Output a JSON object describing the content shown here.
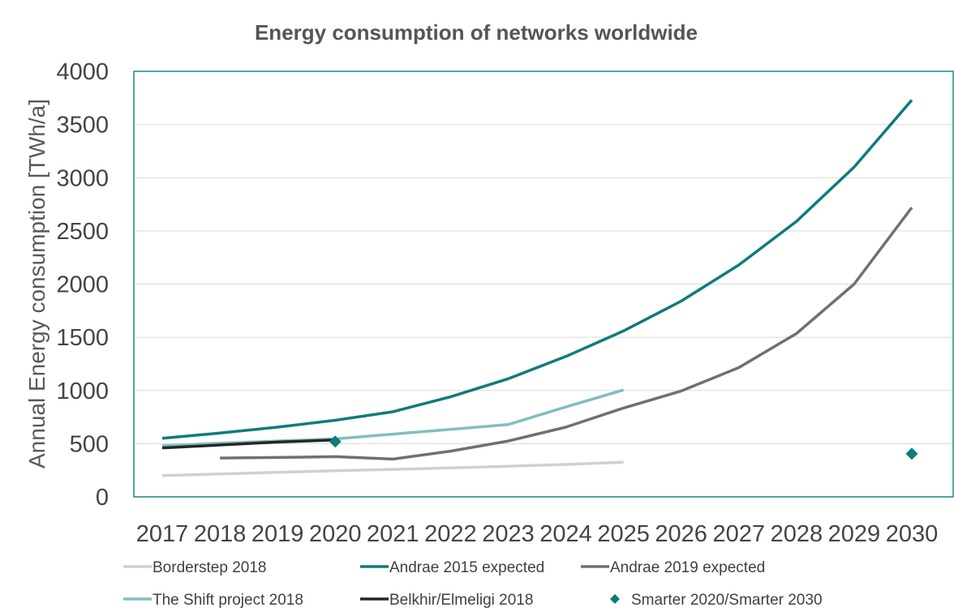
{
  "chart_data": {
    "type": "line",
    "title": "Energy consumption of networks worldwide",
    "xlabel": "",
    "ylabel": "Annual Energy consumption [TWh/a]",
    "x": [
      2017,
      2018,
      2019,
      2020,
      2021,
      2022,
      2023,
      2024,
      2025,
      2026,
      2027,
      2028,
      2029,
      2030
    ],
    "x_tick_labels": [
      "2017",
      "2018",
      "2019",
      "2020",
      "2021",
      "2022",
      "2023",
      "2024",
      "2025",
      "2026",
      "2027",
      "2028",
      "2029",
      "2030"
    ],
    "ylim": [
      0,
      4000
    ],
    "y_ticks": [
      0,
      500,
      1000,
      1500,
      2000,
      2500,
      3000,
      3500,
      4000
    ],
    "grid": "horizontal",
    "legend_position": "bottom",
    "series": [
      {
        "name": "Borderstep 2018",
        "color": "#d0d0d0",
        "marker": "line",
        "points": [
          [
            2017,
            200
          ],
          [
            2018,
            215
          ],
          [
            2019,
            230
          ],
          [
            2020,
            245
          ],
          [
            2021,
            258
          ],
          [
            2022,
            272
          ],
          [
            2023,
            288
          ],
          [
            2024,
            305
          ],
          [
            2025,
            325
          ]
        ]
      },
      {
        "name": "Andrae 2015 expected",
        "color": "#0f7b7b",
        "marker": "line",
        "points": [
          [
            2017,
            550
          ],
          [
            2018,
            600
          ],
          [
            2019,
            655
          ],
          [
            2020,
            720
          ],
          [
            2021,
            800
          ],
          [
            2022,
            940
          ],
          [
            2023,
            1110
          ],
          [
            2024,
            1320
          ],
          [
            2025,
            1560
          ],
          [
            2026,
            1840
          ],
          [
            2027,
            2180
          ],
          [
            2028,
            2590
          ],
          [
            2029,
            3100
          ],
          [
            2030,
            3730
          ]
        ]
      },
      {
        "name": "Andrae 2019 expected",
        "color": "#707070",
        "marker": "line",
        "points": [
          [
            2018,
            365
          ],
          [
            2019,
            370
          ],
          [
            2020,
            378
          ],
          [
            2021,
            355
          ],
          [
            2022,
            430
          ],
          [
            2023,
            525
          ],
          [
            2024,
            655
          ],
          [
            2025,
            835
          ],
          [
            2026,
            995
          ],
          [
            2027,
            1215
          ],
          [
            2028,
            1535
          ],
          [
            2029,
            2000
          ],
          [
            2030,
            2720
          ]
        ]
      },
      {
        "name": "The Shift project 2018",
        "color": "#7fbfbf",
        "marker": "line",
        "points": [
          [
            2017,
            480
          ],
          [
            2018,
            505
          ],
          [
            2019,
            525
          ],
          [
            2020,
            545
          ],
          [
            2021,
            590
          ],
          [
            2022,
            635
          ],
          [
            2023,
            680
          ],
          [
            2024,
            845
          ],
          [
            2025,
            1005
          ]
        ]
      },
      {
        "name": "Belkhir/Elmeligi 2018",
        "color": "#262626",
        "marker": "line",
        "points": [
          [
            2017,
            460
          ],
          [
            2018,
            488
          ],
          [
            2019,
            515
          ],
          [
            2020,
            535
          ]
        ]
      },
      {
        "name": "Smarter 2020/Smarter 2030",
        "color": "#0f7b7b",
        "marker": "diamond",
        "points": [
          [
            2020,
            520
          ],
          [
            2030,
            405
          ]
        ]
      }
    ]
  }
}
